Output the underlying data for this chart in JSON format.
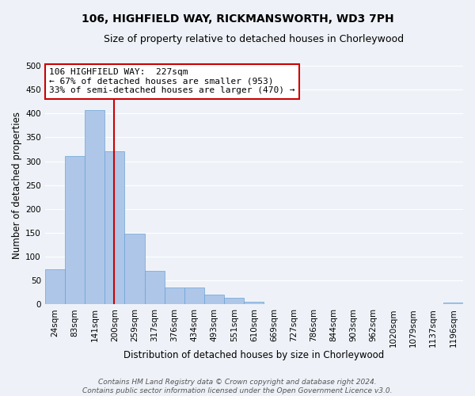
{
  "title": "106, HIGHFIELD WAY, RICKMANSWORTH, WD3 7PH",
  "subtitle": "Size of property relative to detached houses in Chorleywood",
  "xlabel": "Distribution of detached houses by size in Chorleywood",
  "ylabel": "Number of detached properties",
  "bin_labels": [
    "24sqm",
    "83sqm",
    "141sqm",
    "200sqm",
    "259sqm",
    "317sqm",
    "376sqm",
    "434sqm",
    "493sqm",
    "551sqm",
    "610sqm",
    "669sqm",
    "727sqm",
    "786sqm",
    "844sqm",
    "903sqm",
    "962sqm",
    "1020sqm",
    "1079sqm",
    "1137sqm",
    "1196sqm"
  ],
  "bar_values": [
    74,
    311,
    407,
    320,
    148,
    70,
    36,
    36,
    21,
    14,
    6,
    0,
    0,
    0,
    0,
    0,
    0,
    0,
    0,
    0,
    3
  ],
  "bar_color": "#aec6e8",
  "bar_edgecolor": "#6aa3d4",
  "ylim": [
    0,
    500
  ],
  "yticks": [
    0,
    50,
    100,
    150,
    200,
    250,
    300,
    350,
    400,
    450,
    500
  ],
  "vline_color": "#cc0000",
  "annotation_title": "106 HIGHFIELD WAY:  227sqm",
  "annotation_line1": "← 67% of detached houses are smaller (953)",
  "annotation_line2": "33% of semi-detached houses are larger (470) →",
  "annotation_box_color": "#ffffff",
  "annotation_box_edgecolor": "#cc0000",
  "footer_line1": "Contains HM Land Registry data © Crown copyright and database right 2024.",
  "footer_line2": "Contains public sector information licensed under the Open Government Licence v3.0.",
  "background_color": "#eef2f8",
  "grid_color": "#ffffff",
  "title_fontsize": 10,
  "subtitle_fontsize": 9,
  "axis_label_fontsize": 8.5,
  "tick_fontsize": 7.5,
  "annotation_fontsize": 8,
  "footer_fontsize": 6.5
}
